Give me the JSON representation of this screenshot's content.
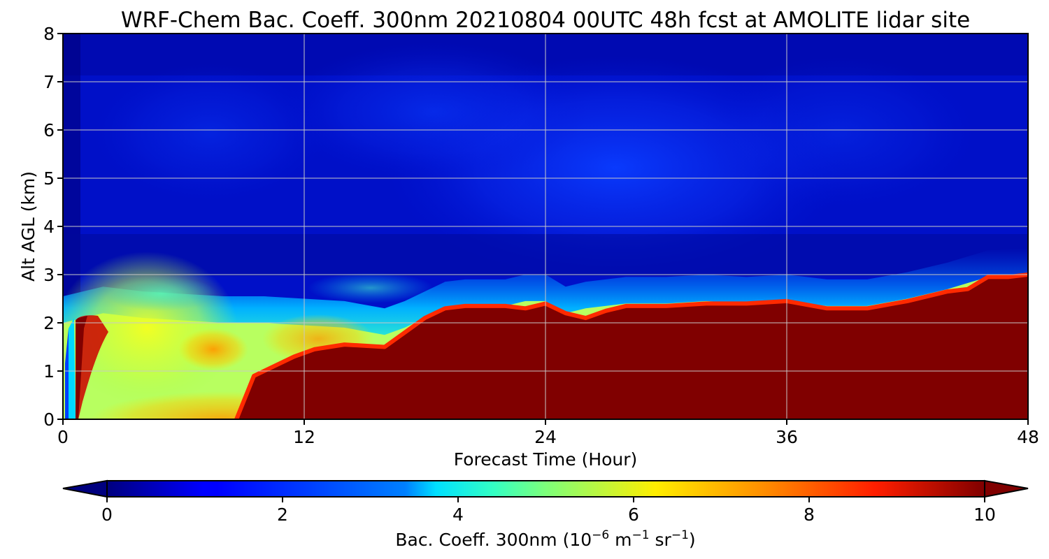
{
  "chart_data": {
    "type": "heatmap",
    "title": "WRF-Chem Bac. Coeff. 300nm  20210804 00UTC 48h fcst at AMOLITE lidar site",
    "xlabel": "Forecast Time (Hour)",
    "ylabel": "Alt AGL (km)",
    "xlim": [
      0,
      48
    ],
    "ylim": [
      0,
      8
    ],
    "x_ticks": [
      "0",
      "12",
      "24",
      "36",
      "48"
    ],
    "y_ticks": [
      "0",
      "1",
      "2",
      "3",
      "4",
      "5",
      "6",
      "7",
      "8"
    ],
    "grid": true,
    "colorbar": {
      "label_main": "Bac. Coeff. 300nm  (10",
      "label_exp1": "−6",
      "label_mid": " m",
      "label_exp2": "−1",
      "label_mid2": " sr",
      "label_exp3": "−1",
      "label_end": ")",
      "range": [
        0,
        10
      ],
      "ticks": [
        "0",
        "2",
        "4",
        "6",
        "8",
        "10"
      ],
      "colormap": "jet",
      "extend": "both"
    },
    "field_notes": "Backscatter coefficient vs forecast hour and altitude: low values (~0-1) aloft above ~3 km, a bright layer (~3-6) at 2-2.5 km, high values (>=10) in the boundary layer below ~2.4-3 km from hour ~10 onward",
    "boundary_layer_top_km": {
      "hours": [
        0,
        2,
        4,
        6,
        8,
        10,
        12,
        14,
        16,
        17,
        18,
        19,
        20,
        22,
        23,
        24,
        25,
        26,
        28,
        30,
        32,
        34,
        36,
        38,
        40,
        42,
        44,
        46,
        48
      ],
      "values": [
        2.0,
        2.2,
        2.1,
        2.05,
        2.0,
        2.0,
        1.95,
        1.9,
        1.75,
        1.9,
        2.1,
        2.3,
        2.35,
        2.35,
        2.45,
        2.45,
        2.2,
        2.3,
        2.4,
        2.4,
        2.45,
        2.4,
        2.45,
        2.35,
        2.35,
        2.5,
        2.7,
        2.95,
        3.0
      ]
    },
    "high_value_top_km": {
      "hours": [
        9.5,
        10.5,
        11.5,
        12.5,
        14,
        16,
        17,
        18,
        19,
        20,
        22,
        23,
        24,
        25,
        26,
        27,
        28,
        30,
        32,
        34,
        36,
        38,
        40,
        42,
        44,
        45,
        46,
        47,
        48
      ],
      "values": [
        0.9,
        1.1,
        1.3,
        1.45,
        1.55,
        1.5,
        1.8,
        2.1,
        2.3,
        2.35,
        2.35,
        2.3,
        2.4,
        2.2,
        2.1,
        2.25,
        2.35,
        2.35,
        2.4,
        2.4,
        2.45,
        2.3,
        2.3,
        2.45,
        2.65,
        2.7,
        2.95,
        2.95,
        3.0
      ]
    }
  }
}
